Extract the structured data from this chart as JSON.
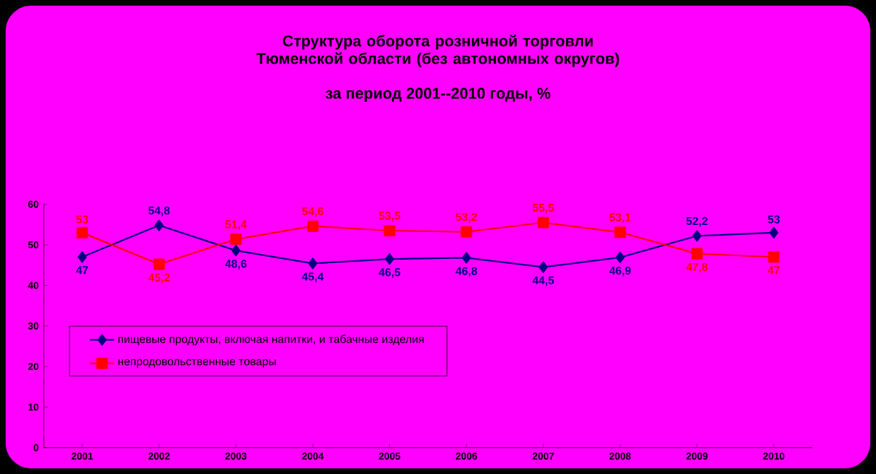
{
  "chart_data": {
    "type": "line",
    "title": "Структура оборота розничной торговли Тюменской области (без автономных округов)",
    "subtitle": "за период 2001--2010 годы, %",
    "categories": [
      "2001",
      "2002",
      "2003",
      "2004",
      "2005",
      "2006",
      "2007",
      "2008",
      "2009",
      "2010"
    ],
    "series": [
      {
        "name": "пищевые продукты, включая напитки, и табачные изделия",
        "color": "#000080",
        "marker": "diamond",
        "values": [
          47,
          54.8,
          48.6,
          45.4,
          46.5,
          46.8,
          44.5,
          46.9,
          52.2,
          53
        ],
        "value_labels": [
          "47",
          "54,8",
          "48,6",
          "45,4",
          "46,5",
          "46,8",
          "44,5",
          "46,9",
          "52,2",
          "53"
        ]
      },
      {
        "name": "непродовольственные товары",
        "color": "#ff0000",
        "marker": "square",
        "values": [
          53,
          45.2,
          51.4,
          54.6,
          53.5,
          53.2,
          55.5,
          53.1,
          47.8,
          47
        ],
        "value_labels": [
          "53",
          "45,2",
          "51,4",
          "54,6",
          "53,5",
          "53,2",
          "55,5",
          "53,1",
          "47,8",
          "47"
        ]
      }
    ],
    "ylim": [
      0,
      60
    ],
    "yticks": [
      0,
      10,
      20,
      30,
      40,
      50,
      60
    ],
    "grid": false,
    "legend": "left"
  }
}
